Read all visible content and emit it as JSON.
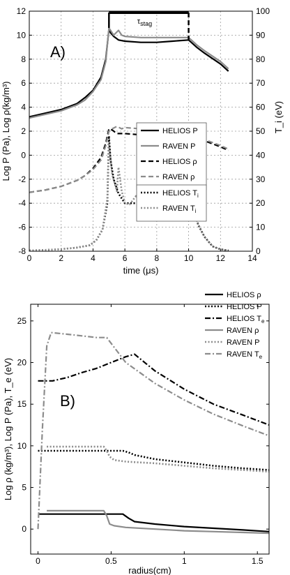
{
  "chart_data": [
    {
      "type": "line",
      "panel_label": "A)",
      "xlabel": "time (μs)",
      "ylabel": "Log P (Pa), Log ρ(kg/m³)",
      "y2label": "T_i (eV)",
      "xlim": [
        0,
        14
      ],
      "ylim": [
        -8,
        12
      ],
      "y2lim": [
        0,
        100
      ],
      "xticks": [
        "0",
        "2",
        "4",
        "6",
        "8",
        "10",
        "12",
        "14"
      ],
      "yticks": [
        "-8",
        "-6",
        "-4",
        "-2",
        "0",
        "2",
        "4",
        "6",
        "8",
        "10",
        "12"
      ],
      "y2ticks": [
        "0",
        "10",
        "20",
        "30",
        "40",
        "50",
        "60",
        "70",
        "80",
        "90",
        "100"
      ],
      "grid": true,
      "annotation": {
        "text": "τ",
        "sub": "stag",
        "x_start": 5.0,
        "x_end": 10.0,
        "y": 12
      },
      "legend": [
        {
          "name": "HELIOS P",
          "color": "#000000",
          "dash": "solid"
        },
        {
          "name": "RAVEN P",
          "color": "#8c8c8c",
          "dash": "solid"
        },
        {
          "name": "HELIOS ρ",
          "color": "#000000",
          "dash": "dashed"
        },
        {
          "name": "RAVEN ρ",
          "color": "#8c8c8c",
          "dash": "dashed"
        },
        {
          "name": "HELIOS T",
          "sub": "i",
          "color": "#000000",
          "dash": "dotted"
        },
        {
          "name": "RAVEN T",
          "sub": "i",
          "color": "#8c8c8c",
          "dash": "dotted"
        }
      ],
      "series": [
        {
          "name": "HELIOS P",
          "axis": "left",
          "color": "#000000",
          "dash": "solid",
          "x": [
            0,
            1,
            2,
            3,
            3.5,
            4,
            4.5,
            4.8,
            5.0,
            5.1,
            5.3,
            5.6,
            6,
            7,
            8,
            9,
            10,
            10.5,
            11,
            12,
            12.5
          ],
          "y": [
            3.2,
            3.5,
            3.8,
            4.3,
            4.8,
            5.4,
            6.5,
            8.0,
            10.5,
            10.2,
            9.9,
            9.6,
            9.5,
            9.4,
            9.4,
            9.5,
            9.6,
            9.0,
            8.5,
            7.6,
            7.0
          ]
        },
        {
          "name": "RAVEN P",
          "axis": "left",
          "color": "#8c8c8c",
          "dash": "solid",
          "x": [
            0,
            1,
            2,
            3,
            3.5,
            4,
            4.5,
            4.8,
            5.0,
            5.1,
            5.3,
            5.6,
            5.8,
            6,
            7,
            8,
            9,
            10,
            10.5,
            11,
            12,
            12.5
          ],
          "y": [
            3.1,
            3.4,
            3.7,
            4.2,
            4.6,
            5.3,
            6.3,
            7.8,
            10.6,
            10.4,
            10.0,
            10.4,
            10.0,
            9.9,
            9.8,
            9.8,
            9.8,
            9.8,
            9.2,
            8.7,
            7.8,
            7.2
          ]
        },
        {
          "name": "HELIOS ρ",
          "axis": "left",
          "color": "#000000",
          "dash": "dashed",
          "x": [
            0,
            1,
            2,
            3,
            3.5,
            4,
            4.5,
            4.8,
            5.0,
            5.2,
            5.5,
            6,
            7,
            8,
            9,
            10,
            10.5,
            11,
            12,
            12.5
          ],
          "y": [
            -3.1,
            -2.9,
            -2.6,
            -2.1,
            -1.7,
            -1.1,
            -0.2,
            1.0,
            2.2,
            2.1,
            1.8,
            1.8,
            1.7,
            1.7,
            1.8,
            1.9,
            1.5,
            1.2,
            0.7,
            0.4
          ]
        },
        {
          "name": "RAVEN ρ",
          "axis": "left",
          "color": "#8c8c8c",
          "dash": "dashed",
          "x": [
            0,
            1,
            2,
            3,
            3.5,
            4,
            4.5,
            4.8,
            5.0,
            5.2,
            5.5,
            5.8,
            6,
            7,
            8,
            9,
            10,
            10.5,
            11,
            12,
            12.5
          ],
          "y": [
            -3.1,
            -2.9,
            -2.6,
            -2.1,
            -1.7,
            -1.2,
            -0.4,
            0.8,
            2.0,
            2.2,
            2.4,
            2.2,
            2.3,
            2.2,
            2.1,
            2.0,
            1.9,
            1.6,
            1.3,
            0.8,
            0.5
          ]
        },
        {
          "name": "HELIOS Ti",
          "axis": "right",
          "color": "#000000",
          "dash": "dotted",
          "x": [
            0,
            1,
            2,
            3,
            3.8,
            4.2,
            4.6,
            4.9,
            5.0,
            5.1,
            5.3,
            5.6,
            6,
            7,
            8,
            9,
            9.6,
            10,
            10.3,
            10.6,
            11,
            11.5,
            12,
            12.5
          ],
          "y": [
            0.3,
            0.5,
            0.8,
            1.5,
            2.5,
            4.5,
            9.0,
            20.0,
            48.0,
            38.0,
            30.0,
            24.0,
            20.0,
            20.0,
            20.0,
            22.0,
            24.0,
            22.0,
            18.0,
            11.0,
            6.0,
            2.0,
            0.8,
            0.3
          ]
        },
        {
          "name": "RAVEN Ti",
          "axis": "right",
          "color": "#8c8c8c",
          "dash": "dotted",
          "x": [
            0,
            1,
            2,
            3,
            3.8,
            4.2,
            4.6,
            4.9,
            5.0,
            5.2,
            5.5,
            5.6,
            5.8,
            6.0,
            6.3,
            6.7,
            7,
            8,
            9,
            9.6,
            10,
            10.3,
            10.6,
            11,
            11.5,
            12,
            12.5
          ],
          "y": [
            0.3,
            0.5,
            0.8,
            1.5,
            2.5,
            4.5,
            9.0,
            22.0,
            45.0,
            32.0,
            25.0,
            35.0,
            25.0,
            20.0,
            19.5,
            23.0,
            20.0,
            20.0,
            22.0,
            24.0,
            22.0,
            18.0,
            11.0,
            6.0,
            2.0,
            0.8,
            0.3
          ]
        }
      ]
    },
    {
      "type": "line",
      "panel_label": "B)",
      "xlabel": "radius(cm)",
      "ylabel": "Log ρ (kg/m³), Log P (Pa), T_e (eV)",
      "xlim": [
        -0.05,
        1.58
      ],
      "ylim": [
        -3,
        27
      ],
      "xticks": [
        "0",
        "0.5",
        "1",
        "1.5"
      ],
      "yticks": [
        "0",
        "5",
        "10",
        "15",
        "20",
        "25"
      ],
      "grid": false,
      "legend": [
        {
          "name": "HELIOS ρ",
          "color": "#000000",
          "dash": "solid"
        },
        {
          "name": "HELIOS P",
          "color": "#000000",
          "dash": "dotted"
        },
        {
          "name": "HELIOS T",
          "sub": "e",
          "color": "#000000",
          "dash": "dashdot"
        },
        {
          "name": "RAVEN ρ",
          "color": "#8c8c8c",
          "dash": "solid"
        },
        {
          "name": "RAVEN P",
          "color": "#8c8c8c",
          "dash": "dotted"
        },
        {
          "name": "RAVEN T",
          "sub": "e",
          "color": "#8c8c8c",
          "dash": "dashdot"
        }
      ],
      "series": [
        {
          "name": "HELIOS ρ",
          "color": "#000000",
          "dash": "solid",
          "x": [
            0,
            0.2,
            0.4,
            0.58,
            0.62,
            0.66,
            0.8,
            1.0,
            1.2,
            1.4,
            1.58
          ],
          "y": [
            1.8,
            1.8,
            1.8,
            1.8,
            1.3,
            0.9,
            0.6,
            0.3,
            0.1,
            -0.1,
            -0.3
          ]
        },
        {
          "name": "HELIOS P",
          "color": "#000000",
          "dash": "dotted",
          "x": [
            0,
            0.2,
            0.4,
            0.58,
            0.62,
            0.66,
            0.8,
            1.0,
            1.2,
            1.4,
            1.58
          ],
          "y": [
            9.4,
            9.4,
            9.4,
            9.4,
            9.2,
            8.9,
            8.4,
            8.0,
            7.6,
            7.3,
            7.1
          ]
        },
        {
          "name": "HELIOS Te",
          "color": "#000000",
          "dash": "dashdot",
          "x": [
            0,
            0.1,
            0.2,
            0.3,
            0.4,
            0.5,
            0.6,
            0.66,
            0.8,
            1.0,
            1.2,
            1.4,
            1.58
          ],
          "y": [
            17.8,
            17.8,
            18.2,
            18.8,
            19.3,
            20.0,
            20.7,
            21.0,
            19.0,
            16.8,
            15.0,
            13.7,
            12.5
          ]
        },
        {
          "name": "RAVEN ρ",
          "color": "#8c8c8c",
          "dash": "solid",
          "x": [
            0.06,
            0.2,
            0.45,
            0.47,
            0.49,
            0.52,
            0.6,
            0.8,
            1.0,
            1.2,
            1.4,
            1.58
          ],
          "y": [
            2.2,
            2.2,
            2.2,
            1.6,
            0.6,
            0.4,
            0.2,
            0.0,
            -0.2,
            -0.3,
            -0.4,
            -0.5
          ]
        },
        {
          "name": "RAVEN P",
          "color": "#8c8c8c",
          "dash": "dotted",
          "x": [
            0.06,
            0.2,
            0.45,
            0.47,
            0.49,
            0.52,
            0.6,
            0.8,
            1.0,
            1.2,
            1.4,
            1.58
          ],
          "y": [
            9.9,
            9.9,
            9.9,
            9.4,
            8.7,
            8.3,
            8.1,
            7.9,
            7.6,
            7.3,
            7.1,
            6.9
          ]
        },
        {
          "name": "RAVEN Te",
          "color": "#8c8c8c",
          "dash": "dashdot",
          "x": [
            0,
            0.03,
            0.06,
            0.09,
            0.2,
            0.3,
            0.4,
            0.47,
            0.6,
            0.8,
            1.0,
            1.2,
            1.4,
            1.58
          ],
          "y": [
            0.0,
            12.0,
            22.0,
            23.6,
            23.4,
            23.2,
            23.0,
            23.0,
            20.0,
            17.5,
            15.5,
            13.8,
            12.4,
            11.2
          ]
        }
      ]
    }
  ]
}
